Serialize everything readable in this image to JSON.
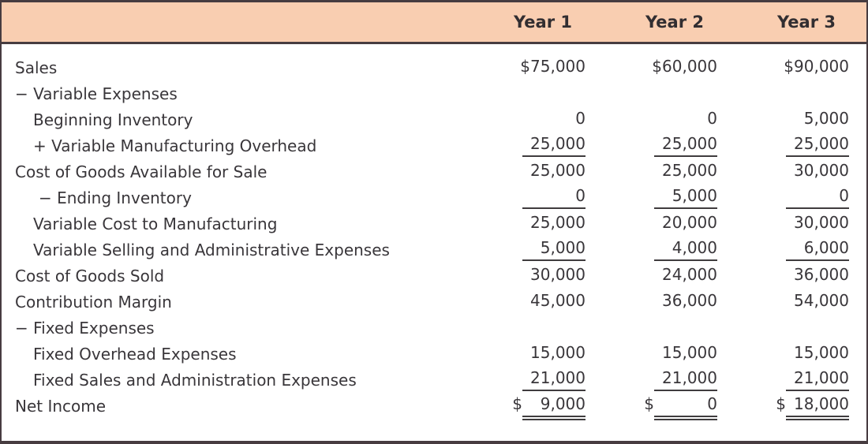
{
  "table": {
    "currency_symbol": "$",
    "columns": [
      "Year 1",
      "Year 2",
      "Year 3"
    ],
    "rows": [
      {
        "label": "Sales",
        "indent": 0,
        "values": [
          "$75,000",
          "$60,000",
          "$90,000"
        ],
        "underline": "none",
        "currency": false
      },
      {
        "label": "− Variable Expenses",
        "indent": 0,
        "values": [
          "",
          "",
          ""
        ],
        "underline": "none",
        "currency": false
      },
      {
        "label": "Beginning Inventory",
        "indent": 1,
        "values": [
          "0",
          "0",
          "5,000"
        ],
        "underline": "none",
        "currency": false
      },
      {
        "label": "+ Variable Manufacturing Overhead",
        "indent": 1,
        "values": [
          "25,000",
          "25,000",
          "25,000"
        ],
        "underline": "single",
        "currency": false
      },
      {
        "label": "Cost of Goods Available for Sale",
        "indent": 0,
        "values": [
          "25,000",
          "25,000",
          "30,000"
        ],
        "underline": "none",
        "currency": false
      },
      {
        "label": "− Ending Inventory",
        "indent": 2,
        "values": [
          "0",
          "5,000",
          "0"
        ],
        "underline": "single",
        "currency": false
      },
      {
        "label": "Variable Cost to Manufacturing",
        "indent": 1,
        "values": [
          "25,000",
          "20,000",
          "30,000"
        ],
        "underline": "none",
        "currency": false
      },
      {
        "label": "Variable Selling and Administrative Expenses",
        "indent": 1,
        "values": [
          "5,000",
          "4,000",
          "6,000"
        ],
        "underline": "single",
        "currency": false
      },
      {
        "label": "Cost of Goods Sold",
        "indent": 0,
        "values": [
          "30,000",
          "24,000",
          "36,000"
        ],
        "underline": "none",
        "currency": false
      },
      {
        "label": "Contribution Margin",
        "indent": 0,
        "values": [
          "45,000",
          "36,000",
          "54,000"
        ],
        "underline": "none",
        "currency": false
      },
      {
        "label": "− Fixed Expenses",
        "indent": 0,
        "values": [
          "",
          "",
          ""
        ],
        "underline": "none",
        "currency": false
      },
      {
        "label": "Fixed Overhead Expenses",
        "indent": 1,
        "values": [
          "15,000",
          "15,000",
          "15,000"
        ],
        "underline": "none",
        "currency": false
      },
      {
        "label": "Fixed Sales and Administration Expenses",
        "indent": 1,
        "values": [
          "21,000",
          "21,000",
          "21,000"
        ],
        "underline": "single",
        "currency": false
      },
      {
        "label": "Net Income",
        "indent": 0,
        "values": [
          "9,000",
          "0",
          "18,000"
        ],
        "underline": "double",
        "currency": true
      }
    ]
  },
  "colors": {
    "header_bg": "#f9ceb1",
    "frame_border": "#473c40",
    "rule": "#3f3c3e",
    "text": "#39363a",
    "header_text": "#322e31"
  }
}
